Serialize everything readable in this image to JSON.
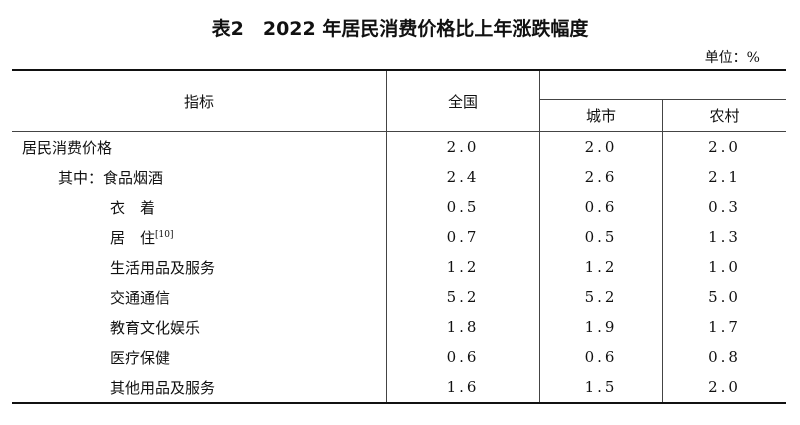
{
  "title": "表2　2022 年居民消费价格比上年涨跌幅度",
  "unit": "单位：%",
  "headers": {
    "indicator": "指标",
    "national": "全国",
    "urban": "城市",
    "rural": "农村"
  },
  "rows": [
    {
      "label": "居民消费价格",
      "level": 0,
      "national": "2.0",
      "urban": "2.0",
      "rural": "2.0"
    },
    {
      "label": "其中：食品烟酒",
      "level": 1,
      "national": "2.4",
      "urban": "2.6",
      "rural": "2.1"
    },
    {
      "label": "衣　着",
      "level": 2,
      "national": "0.5",
      "urban": "0.6",
      "rural": "0.3"
    },
    {
      "label": "居　住",
      "note": "[10]",
      "level": 2,
      "national": "0.7",
      "urban": "0.5",
      "rural": "1.3"
    },
    {
      "label": "生活用品及服务",
      "level": 2,
      "national": "1.2",
      "urban": "1.2",
      "rural": "1.0"
    },
    {
      "label": "交通通信",
      "level": 2,
      "national": "5.2",
      "urban": "5.2",
      "rural": "5.0"
    },
    {
      "label": "教育文化娱乐",
      "level": 2,
      "national": "1.8",
      "urban": "1.9",
      "rural": "1.7"
    },
    {
      "label": "医疗保健",
      "level": 2,
      "national": "0.6",
      "urban": "0.6",
      "rural": "0.8"
    },
    {
      "label": "其他用品及服务",
      "level": 2,
      "national": "1.6",
      "urban": "1.5",
      "rural": "2.0"
    }
  ]
}
